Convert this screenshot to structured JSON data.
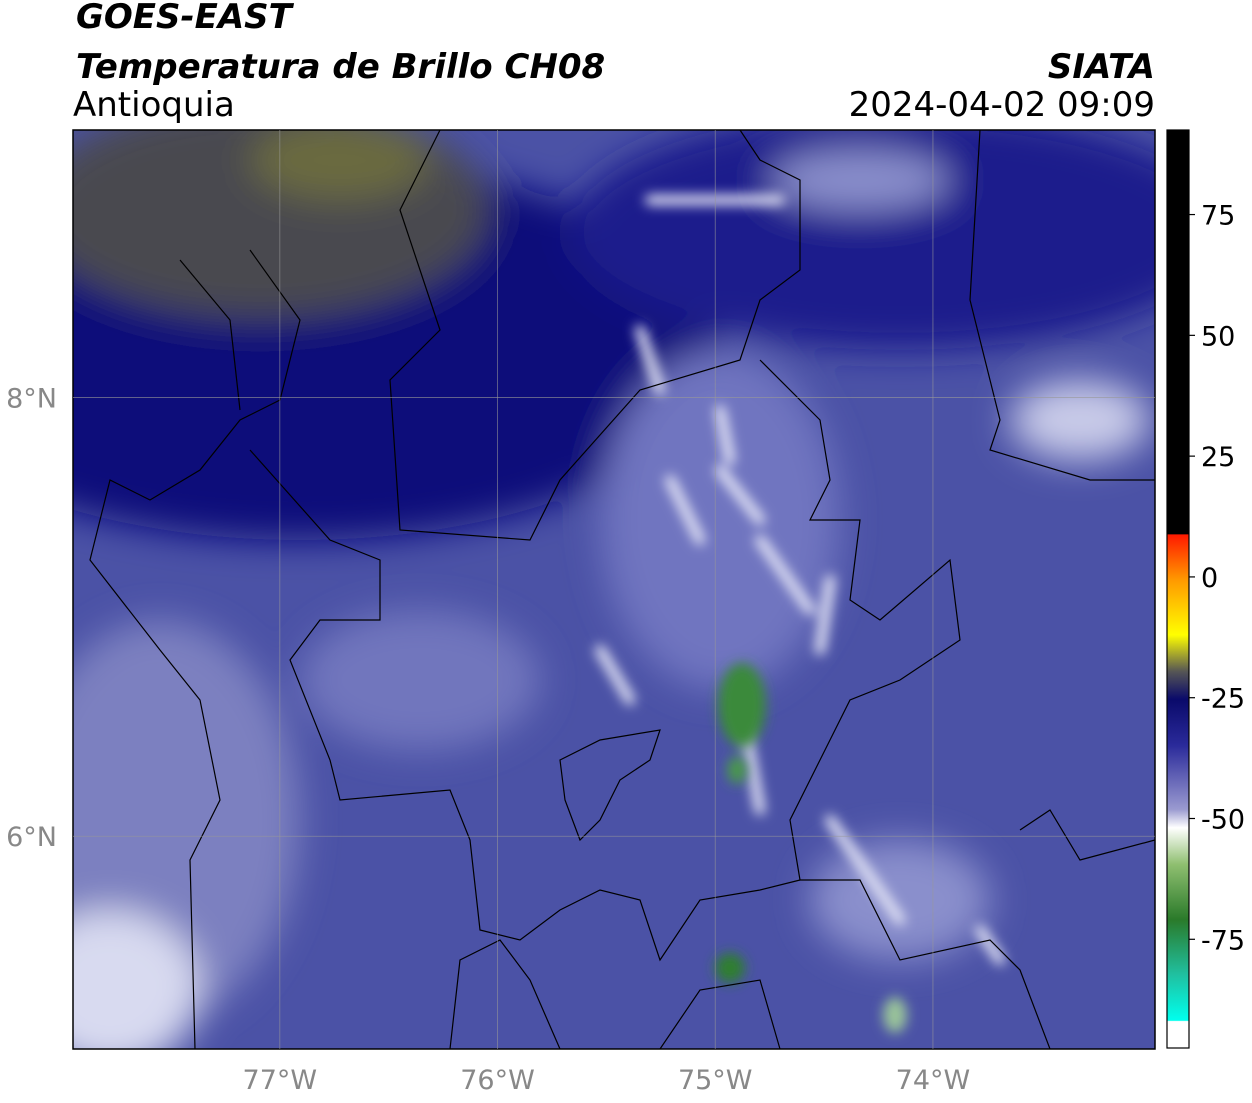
{
  "chart_data": {
    "type": "map",
    "title": "GOES-EAST",
    "subtitle": "Temperatura de Brillo CH08",
    "region": "Antioquia",
    "source": "SIATA",
    "datetime": "2024-04-02 09:09",
    "xlim": [
      -77.95,
      -72.98
    ],
    "ylim": [
      5.03,
      9.22
    ],
    "xticks": [
      {
        "value": -77,
        "label": "77°W"
      },
      {
        "value": -76,
        "label": "76°W"
      },
      {
        "value": -75,
        "label": "75°W"
      },
      {
        "value": -74,
        "label": "74°W"
      }
    ],
    "yticks": [
      {
        "value": 8,
        "label": "8°N"
      },
      {
        "value": 6,
        "label": "6°N"
      }
    ],
    "grid": true,
    "colorbar": {
      "lim": [
        -97.5,
        92.5
      ],
      "ticks": [
        75,
        50,
        25,
        0,
        -25,
        -50,
        -75
      ]
    }
  }
}
